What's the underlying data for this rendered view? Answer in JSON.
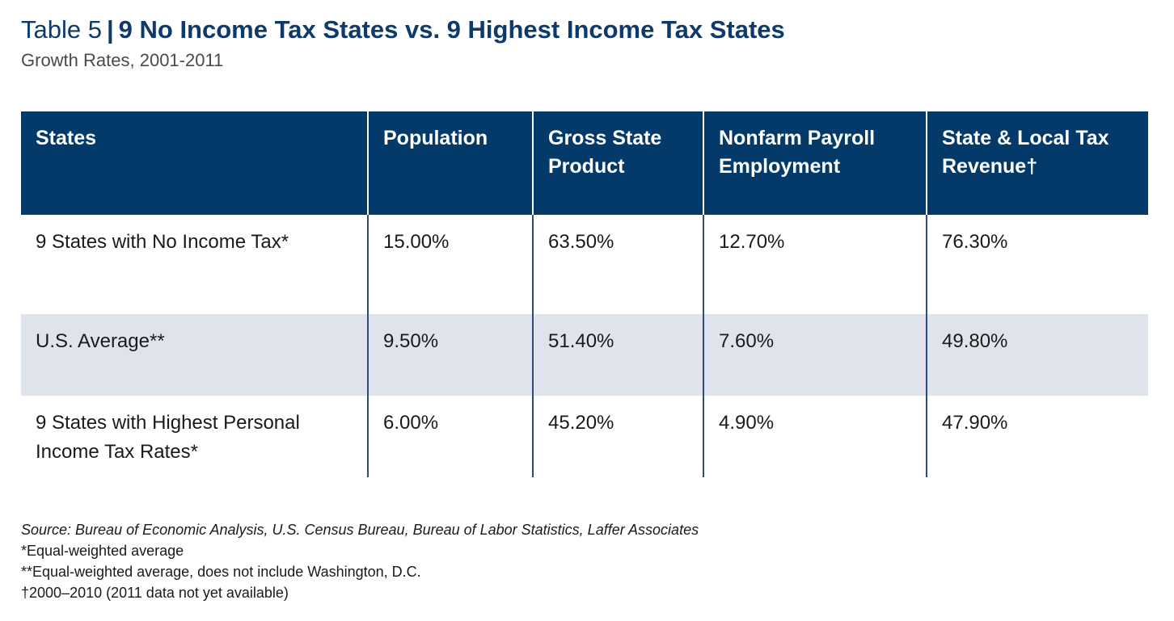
{
  "title": {
    "prefix": "Table 5",
    "separator": "|",
    "main": "9 No Income Tax States vs. 9 Highest Income Tax States"
  },
  "subtitle": "Growth Rates, 2001-2011",
  "colors": {
    "header_bg": "#043a6a",
    "title": "#0d3a6b",
    "band_row": "#dfe3ec"
  },
  "chart_data": {
    "type": "table",
    "title": "9 No Income Tax States vs. 9 Highest Income Tax States",
    "subtitle": "Growth Rates, 2001-2011",
    "columns": [
      "States",
      "Population",
      "Gross State Product",
      "Nonfarm Payroll Employment",
      "State & Local Tax Revenue†"
    ],
    "rows": [
      [
        "9 States with No Income Tax*",
        "15.00%",
        "63.50%",
        "12.70%",
        "76.30%"
      ],
      [
        "U.S. Average**",
        "9.50%",
        "51.40%",
        "7.60%",
        "49.80%"
      ],
      [
        "9 States with Highest Personal Income Tax Rates*",
        "6.00%",
        "45.20%",
        "4.90%",
        "47.90%"
      ]
    ]
  },
  "notes": {
    "source": "Source: Bureau of Economic Analysis, U.S. Census Bureau, Bureau of Labor Statistics, Laffer Associates",
    "note1": "*Equal-weighted average",
    "note2": "**Equal-weighted average, does not include Washington, D.C.",
    "note3": "†2000–2010 (2011 data not yet available)"
  }
}
